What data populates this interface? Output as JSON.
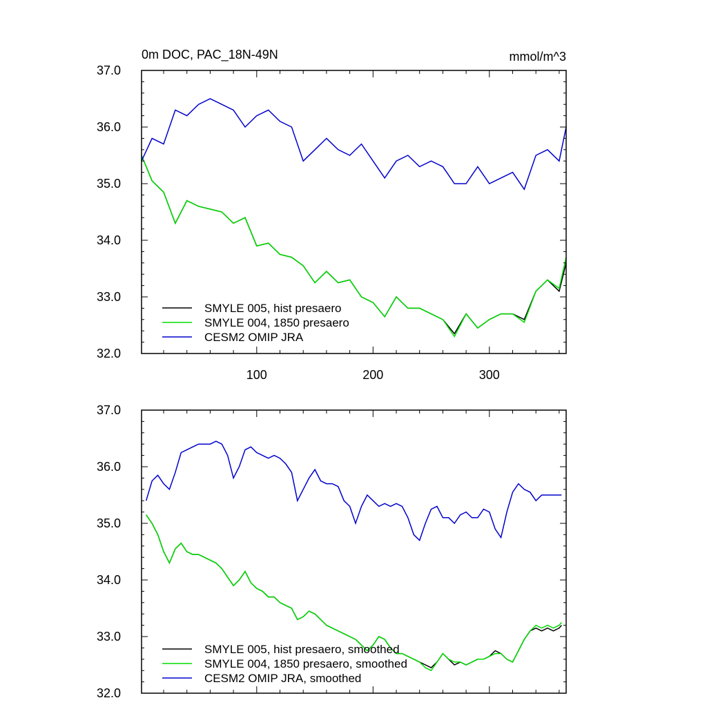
{
  "chart_data": [
    {
      "type": "line",
      "title": "0m DOC, PAC_18N-49N",
      "units": "mmol/m^3",
      "xlabel": "",
      "ylabel": "",
      "xlim": [
        1,
        366
      ],
      "ylim": [
        32.0,
        37.0
      ],
      "xticks": [
        100,
        200,
        300
      ],
      "yticks": [
        32.0,
        33.0,
        34.0,
        35.0,
        36.0,
        37.0
      ],
      "ytick_labels": [
        "32.0",
        "33.0",
        "34.0",
        "35.0",
        "36.0",
        "37.0"
      ],
      "grid": false,
      "legend_position": "bottom-left",
      "series": [
        {
          "name": "SMYLE 005, hist presaero",
          "color": "#000000",
          "x": [
            1,
            10,
            20,
            30,
            40,
            50,
            60,
            70,
            80,
            90,
            100,
            110,
            120,
            130,
            140,
            150,
            160,
            170,
            180,
            190,
            200,
            210,
            220,
            230,
            240,
            250,
            260,
            270,
            280,
            290,
            300,
            310,
            320,
            330,
            340,
            350,
            360,
            366
          ],
          "values": [
            35.5,
            35.05,
            34.85,
            34.3,
            34.7,
            34.6,
            34.55,
            34.5,
            34.3,
            34.4,
            33.9,
            33.95,
            33.75,
            33.7,
            33.55,
            33.25,
            33.45,
            33.25,
            33.3,
            33.0,
            32.9,
            32.65,
            33.0,
            32.8,
            32.8,
            32.7,
            32.6,
            32.35,
            32.7,
            32.45,
            32.6,
            32.7,
            32.7,
            32.6,
            33.1,
            33.3,
            33.1,
            33.6
          ]
        },
        {
          "name": "SMYLE 004, 1850 presaero",
          "color": "#00dd00",
          "x": [
            1,
            10,
            20,
            30,
            40,
            50,
            60,
            70,
            80,
            90,
            100,
            110,
            120,
            130,
            140,
            150,
            160,
            170,
            180,
            190,
            200,
            210,
            220,
            230,
            240,
            250,
            260,
            270,
            280,
            290,
            300,
            310,
            320,
            330,
            340,
            350,
            360,
            366
          ],
          "values": [
            35.5,
            35.05,
            34.85,
            34.3,
            34.7,
            34.6,
            34.55,
            34.5,
            34.3,
            34.4,
            33.9,
            33.95,
            33.75,
            33.7,
            33.55,
            33.25,
            33.45,
            33.25,
            33.3,
            33.0,
            32.9,
            32.65,
            33.0,
            32.8,
            32.8,
            32.7,
            32.6,
            32.3,
            32.7,
            32.45,
            32.6,
            32.7,
            32.7,
            32.55,
            33.1,
            33.3,
            33.15,
            33.7
          ]
        },
        {
          "name": "CESM2 OMIP JRA",
          "color": "#0000cc",
          "x": [
            1,
            10,
            20,
            30,
            40,
            50,
            60,
            70,
            80,
            90,
            100,
            110,
            120,
            130,
            140,
            150,
            160,
            170,
            180,
            190,
            200,
            210,
            220,
            230,
            240,
            250,
            260,
            270,
            280,
            290,
            300,
            310,
            320,
            330,
            340,
            350,
            360,
            366
          ],
          "values": [
            35.4,
            35.8,
            35.7,
            36.3,
            36.2,
            36.4,
            36.5,
            36.4,
            36.3,
            36.0,
            36.2,
            36.3,
            36.1,
            36.0,
            35.4,
            35.6,
            35.8,
            35.6,
            35.5,
            35.7,
            35.4,
            35.1,
            35.4,
            35.5,
            35.3,
            35.4,
            35.3,
            35.0,
            35.0,
            35.3,
            35.0,
            35.1,
            35.2,
            34.9,
            35.5,
            35.6,
            35.4,
            36.0
          ]
        }
      ]
    },
    {
      "type": "line",
      "title": "",
      "xlabel": "",
      "ylabel": "",
      "xlim": [
        1,
        366
      ],
      "ylim": [
        32.0,
        37.0
      ],
      "xticks": [
        100,
        200,
        300
      ],
      "yticks": [
        32.0,
        33.0,
        34.0,
        35.0,
        36.0,
        37.0
      ],
      "ytick_labels": [
        "32.0",
        "33.0",
        "34.0",
        "35.0",
        "36.0",
        "37.0"
      ],
      "grid": false,
      "legend_position": "bottom-left",
      "series": [
        {
          "name": "SMYLE 005, hist presaero, smoothed",
          "color": "#000000",
          "x": [
            5,
            10,
            15,
            20,
            25,
            30,
            35,
            40,
            45,
            50,
            55,
            60,
            65,
            70,
            75,
            80,
            85,
            90,
            95,
            100,
            105,
            110,
            115,
            120,
            125,
            130,
            135,
            140,
            145,
            150,
            155,
            160,
            165,
            170,
            175,
            180,
            185,
            190,
            195,
            200,
            205,
            210,
            215,
            220,
            225,
            230,
            235,
            240,
            245,
            250,
            255,
            260,
            265,
            270,
            275,
            280,
            285,
            290,
            295,
            300,
            305,
            310,
            315,
            320,
            325,
            330,
            335,
            340,
            345,
            350,
            355,
            360,
            362
          ],
          "values": [
            35.15,
            35.0,
            34.8,
            34.5,
            34.3,
            34.55,
            34.65,
            34.5,
            34.45,
            34.45,
            34.4,
            34.35,
            34.3,
            34.2,
            34.05,
            33.9,
            34.0,
            34.15,
            33.95,
            33.85,
            33.8,
            33.7,
            33.7,
            33.6,
            33.55,
            33.5,
            33.3,
            33.35,
            33.45,
            33.4,
            33.3,
            33.2,
            33.15,
            33.1,
            33.05,
            33.0,
            32.95,
            32.85,
            32.75,
            32.85,
            33.0,
            32.95,
            32.8,
            32.7,
            32.7,
            32.65,
            32.6,
            32.55,
            32.5,
            32.45,
            32.55,
            32.7,
            32.6,
            32.5,
            32.55,
            32.5,
            32.55,
            32.6,
            32.6,
            32.65,
            32.75,
            32.7,
            32.6,
            32.55,
            32.75,
            32.95,
            33.1,
            33.15,
            33.1,
            33.15,
            33.1,
            33.15,
            33.2
          ]
        },
        {
          "name": "SMYLE 004, 1850 presaero, smoothed",
          "color": "#00dd00",
          "x": [
            5,
            10,
            15,
            20,
            25,
            30,
            35,
            40,
            45,
            50,
            55,
            60,
            65,
            70,
            75,
            80,
            85,
            90,
            95,
            100,
            105,
            110,
            115,
            120,
            125,
            130,
            135,
            140,
            145,
            150,
            155,
            160,
            165,
            170,
            175,
            180,
            185,
            190,
            195,
            200,
            205,
            210,
            215,
            220,
            225,
            230,
            235,
            240,
            245,
            250,
            255,
            260,
            265,
            270,
            275,
            280,
            285,
            290,
            295,
            300,
            305,
            310,
            315,
            320,
            325,
            330,
            335,
            340,
            345,
            350,
            355,
            360,
            362
          ],
          "values": [
            35.15,
            35.0,
            34.8,
            34.5,
            34.3,
            34.55,
            34.65,
            34.5,
            34.45,
            34.45,
            34.4,
            34.35,
            34.3,
            34.2,
            34.05,
            33.9,
            34.0,
            34.15,
            33.95,
            33.85,
            33.8,
            33.7,
            33.7,
            33.6,
            33.55,
            33.5,
            33.3,
            33.35,
            33.45,
            33.4,
            33.3,
            33.2,
            33.15,
            33.1,
            33.05,
            33.0,
            32.95,
            32.85,
            32.75,
            32.85,
            33.0,
            32.95,
            32.8,
            32.7,
            32.7,
            32.65,
            32.6,
            32.55,
            32.45,
            32.4,
            32.55,
            32.7,
            32.6,
            32.55,
            32.55,
            32.5,
            32.55,
            32.6,
            32.6,
            32.65,
            32.7,
            32.7,
            32.6,
            32.55,
            32.75,
            32.95,
            33.1,
            33.2,
            33.15,
            33.2,
            33.15,
            33.2,
            33.25
          ]
        },
        {
          "name": "CESM2 OMIP JRA, smoothed",
          "color": "#0000cc",
          "x": [
            5,
            10,
            15,
            20,
            25,
            30,
            35,
            40,
            45,
            50,
            55,
            60,
            65,
            70,
            75,
            80,
            85,
            90,
            95,
            100,
            105,
            110,
            115,
            120,
            125,
            130,
            135,
            140,
            145,
            150,
            155,
            160,
            165,
            170,
            175,
            180,
            185,
            190,
            195,
            200,
            205,
            210,
            215,
            220,
            225,
            230,
            235,
            240,
            245,
            250,
            255,
            260,
            265,
            270,
            275,
            280,
            285,
            290,
            295,
            300,
            305,
            310,
            315,
            320,
            325,
            330,
            335,
            340,
            345,
            350,
            355,
            360,
            362
          ],
          "values": [
            35.4,
            35.75,
            35.85,
            35.7,
            35.6,
            35.9,
            36.25,
            36.3,
            36.35,
            36.4,
            36.4,
            36.4,
            36.45,
            36.4,
            36.2,
            35.8,
            36.0,
            36.3,
            36.35,
            36.25,
            36.2,
            36.15,
            36.2,
            36.15,
            36.05,
            35.9,
            35.4,
            35.6,
            35.8,
            35.95,
            35.75,
            35.7,
            35.7,
            35.65,
            35.4,
            35.3,
            35.0,
            35.3,
            35.5,
            35.4,
            35.3,
            35.35,
            35.3,
            35.35,
            35.3,
            35.1,
            34.8,
            34.7,
            35.0,
            35.25,
            35.3,
            35.1,
            35.1,
            35.0,
            35.15,
            35.2,
            35.1,
            35.1,
            35.25,
            35.2,
            34.9,
            34.75,
            35.2,
            35.55,
            35.7,
            35.6,
            35.55,
            35.4,
            35.5,
            35.5,
            35.5,
            35.5,
            35.5
          ]
        }
      ]
    }
  ]
}
